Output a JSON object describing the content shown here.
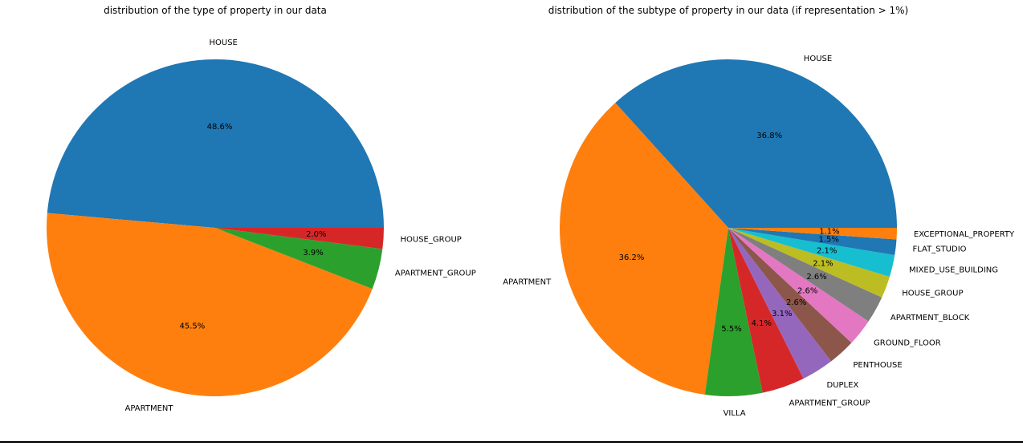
{
  "chart_data": [
    {
      "type": "pie",
      "title": "distribution of the type of property in our data",
      "start_angle_deg": 0,
      "direction": "counterclockwise",
      "slices": [
        {
          "label": "HOUSE",
          "value": 48.6,
          "pct_label": "48.6%",
          "color": "#1f77b4"
        },
        {
          "label": "APARTMENT",
          "value": 45.5,
          "pct_label": "45.5%",
          "color": "#ff7f0e"
        },
        {
          "label": "APARTMENT_GROUP",
          "value": 3.9,
          "pct_label": "3.9%",
          "color": "#2ca02c"
        },
        {
          "label": "HOUSE_GROUP",
          "value": 2.0,
          "pct_label": "2.0%",
          "color": "#d62728"
        }
      ]
    },
    {
      "type": "pie",
      "title": "distribution of the subtype of property in our data (if representation > 1%)",
      "start_angle_deg": 0,
      "direction": "counterclockwise",
      "slices": [
        {
          "label": "HOUSE",
          "value": 36.8,
          "pct_label": "36.8%",
          "color": "#1f77b4"
        },
        {
          "label": "APARTMENT",
          "value": 36.2,
          "pct_label": "36.2%",
          "color": "#ff7f0e"
        },
        {
          "label": "VILLA",
          "value": 5.5,
          "pct_label": "5.5%",
          "color": "#2ca02c"
        },
        {
          "label": "APARTMENT_GROUP",
          "value": 4.1,
          "pct_label": "4.1%",
          "color": "#d62728"
        },
        {
          "label": "DUPLEX",
          "value": 3.1,
          "pct_label": "3.1%",
          "color": "#9467bd"
        },
        {
          "label": "PENTHOUSE",
          "value": 2.6,
          "pct_label": "2.6%",
          "color": "#8c564b"
        },
        {
          "label": "GROUND_FLOOR",
          "value": 2.6,
          "pct_label": "2.6%",
          "color": "#e377c2"
        },
        {
          "label": "APARTMENT_BLOCK",
          "value": 2.6,
          "pct_label": "2.6%",
          "color": "#7f7f7f"
        },
        {
          "label": "HOUSE_GROUP",
          "value": 2.1,
          "pct_label": "2.1%",
          "color": "#bcbd22"
        },
        {
          "label": "MIXED_USE_BUILDING",
          "value": 2.1,
          "pct_label": "2.1%",
          "color": "#17becf"
        },
        {
          "label": "FLAT_STUDIO",
          "value": 1.5,
          "pct_label": "1.5%",
          "color": "#1f77b4"
        },
        {
          "label": "EXCEPTIONAL_PROPERTY",
          "value": 1.1,
          "pct_label": "1.1%",
          "color": "#ff7f0e"
        }
      ]
    }
  ]
}
